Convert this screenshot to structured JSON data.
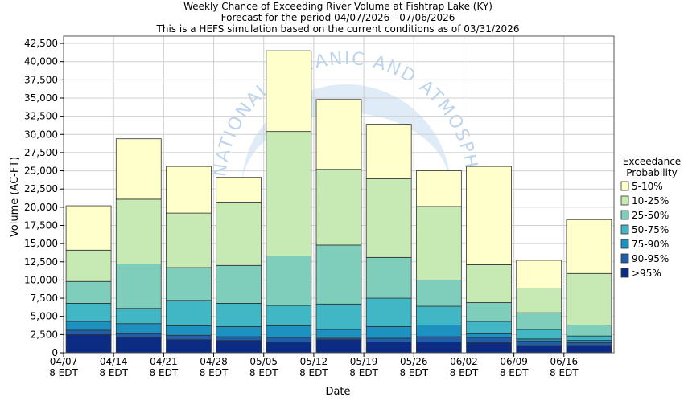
{
  "title_lines": [
    "Weekly Chance of Exceeding River Volume at Fishtrap Lake (KY)",
    "Forecast for the period 04/07/2026 - 07/06/2026",
    "This is a HEFS simulation based on the current conditions as of 03/31/2026"
  ],
  "watermark_text": "NATIONAL OCEANIC AND ATMOSPHERIC ADMINISTRATION",
  "legend": {
    "title_lines": [
      "Exceedance",
      "Probability"
    ],
    "entries": [
      {
        "label": "5-10%",
        "color": "#ffffcc"
      },
      {
        "label": "10-25%",
        "color": "#c7e9b4"
      },
      {
        "label": "25-50%",
        "color": "#7fcdbb"
      },
      {
        "label": "50-75%",
        "color": "#41b6c4"
      },
      {
        "label": "75-90%",
        "color": "#1d91c0"
      },
      {
        "label": "90-95%",
        "color": "#225ea8"
      },
      {
        "label": ">95%",
        "color": "#0c2c84"
      }
    ]
  },
  "chart_data": {
    "type": "bar",
    "stacked": true,
    "xlabel": "Date",
    "ylabel": "Volume (AC-FT)",
    "ylim": [
      0,
      43500
    ],
    "y_ticks": [
      0,
      2500,
      5000,
      7500,
      10000,
      12500,
      15000,
      17500,
      20000,
      22500,
      25000,
      27500,
      30000,
      32500,
      35000,
      37500,
      40000,
      42500
    ],
    "x_tick_labels": [
      [
        "04/07",
        "8 EDT"
      ],
      [
        "04/14",
        "8 EDT"
      ],
      [
        "04/21",
        "8 EDT"
      ],
      [
        "04/28",
        "8 EDT"
      ],
      [
        "05/05",
        "8 EDT"
      ],
      [
        "05/12",
        "8 EDT"
      ],
      [
        "05/19",
        "8 EDT"
      ],
      [
        "05/26",
        "8 EDT"
      ],
      [
        "06/02",
        "8 EDT"
      ],
      [
        "06/09",
        "8 EDT"
      ],
      [
        "06/16",
        "8 EDT"
      ]
    ],
    "num_weeks": 11,
    "grid": true,
    "legend_position": "right",
    "series_order_bottom_to_top": [
      ">95%",
      "90-95%",
      "75-90%",
      "50-75%",
      "25-50%",
      "10-25%",
      "5-10%"
    ],
    "segment_tops": [
      [
        2500,
        3100,
        4300,
        6800,
        9800,
        14100,
        20200
      ],
      [
        2100,
        2600,
        4000,
        6100,
        12200,
        21100,
        29400
      ],
      [
        1800,
        2400,
        3700,
        7200,
        11700,
        19200,
        25600
      ],
      [
        1700,
        2200,
        3600,
        6800,
        12000,
        20700,
        24100
      ],
      [
        1500,
        2100,
        3700,
        6500,
        13300,
        30400,
        41500
      ],
      [
        1800,
        2000,
        3200,
        6700,
        14800,
        25200,
        34800
      ],
      [
        1500,
        2000,
        3600,
        7500,
        13100,
        23900,
        31400
      ],
      [
        1500,
        2200,
        3800,
        6400,
        10000,
        20100,
        25000
      ],
      [
        1400,
        2100,
        2600,
        4300,
        6900,
        12100,
        25600
      ],
      [
        1000,
        1600,
        1900,
        3200,
        5500,
        8900,
        12700
      ],
      [
        1000,
        1400,
        1700,
        2300,
        3800,
        10900,
        18300
      ]
    ]
  }
}
